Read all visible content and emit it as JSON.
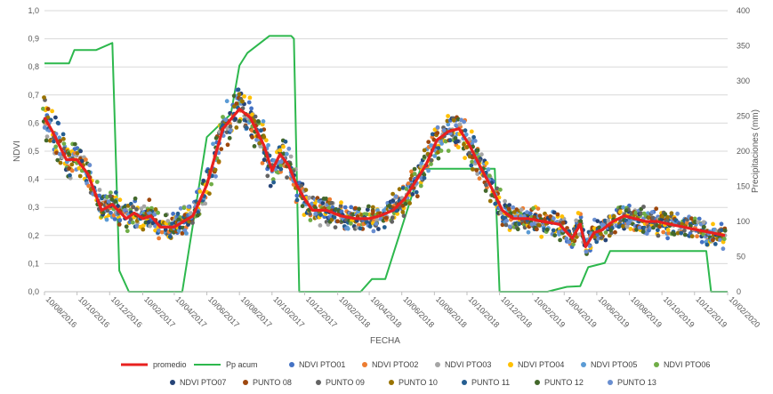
{
  "chart_data": {
    "type": "scatter",
    "xlabel": "FECHA",
    "ylabel": "NDVI",
    "y2label": "Precipitaciones (mm)",
    "ylim": [
      0,
      1
    ],
    "y2lim": [
      0,
      400
    ],
    "y_ticks": [
      "0,0",
      "0,1",
      "0,2",
      "0,3",
      "0,4",
      "0,5",
      "0,6",
      "0,7",
      "0,8",
      "0,9",
      "1,0"
    ],
    "y2_ticks": [
      "0",
      "50",
      "100",
      "150",
      "200",
      "250",
      "300",
      "350",
      "400"
    ],
    "x_ticks": [
      "10/08/2016",
      "10/10/2016",
      "10/12/2016",
      "10/02/2017",
      "10/04/2017",
      "10/06/2017",
      "10/08/2017",
      "10/10/2017",
      "10/12/2017",
      "10/02/2018",
      "10/04/2018",
      "10/06/2018",
      "10/08/2018",
      "10/10/2018",
      "10/12/2018",
      "10/02/2019",
      "10/04/2019",
      "10/06/2019",
      "10/08/2019",
      "10/10/2019",
      "10/12/2019",
      "10/02/2020"
    ],
    "grid": true,
    "legend_position": "bottom",
    "promedio": {
      "name": "promedio",
      "color": "#e8201f",
      "x": [
        "2016-08-10",
        "2016-08-25",
        "2016-09-20",
        "2016-10-10",
        "2016-10-30",
        "2016-11-25",
        "2016-12-15",
        "2017-01-10",
        "2017-01-25",
        "2017-02-10",
        "2017-02-25",
        "2017-03-15",
        "2017-04-10",
        "2017-05-15",
        "2017-06-10",
        "2017-07-10",
        "2017-08-10",
        "2017-08-30",
        "2017-09-25",
        "2017-10-10",
        "2017-10-25",
        "2017-11-10",
        "2017-11-25",
        "2017-12-10",
        "2017-12-25",
        "2018-01-20",
        "2018-02-15",
        "2018-03-15",
        "2018-04-10",
        "2018-04-30",
        "2018-05-25",
        "2018-06-15",
        "2018-07-05",
        "2018-07-25",
        "2018-08-15",
        "2018-09-05",
        "2018-09-25",
        "2018-10-15",
        "2018-11-05",
        "2018-11-25",
        "2018-12-15",
        "2019-01-05",
        "2019-02-01",
        "2019-03-01",
        "2019-04-01",
        "2019-04-25",
        "2019-05-10",
        "2019-05-20",
        "2019-06-05",
        "2019-06-20",
        "2019-07-10",
        "2019-08-01",
        "2019-08-20",
        "2019-09-10",
        "2019-10-01",
        "2019-10-25",
        "2019-11-20",
        "2019-12-15",
        "2020-01-10",
        "2020-02-05"
      ],
      "values": [
        0.62,
        0.57,
        0.47,
        0.47,
        0.42,
        0.29,
        0.31,
        0.26,
        0.28,
        0.26,
        0.27,
        0.23,
        0.23,
        0.27,
        0.38,
        0.58,
        0.65,
        0.62,
        0.52,
        0.43,
        0.49,
        0.45,
        0.38,
        0.33,
        0.29,
        0.29,
        0.27,
        0.26,
        0.26,
        0.27,
        0.29,
        0.33,
        0.39,
        0.45,
        0.54,
        0.57,
        0.58,
        0.52,
        0.44,
        0.37,
        0.29,
        0.26,
        0.26,
        0.25,
        0.24,
        0.19,
        0.24,
        0.16,
        0.21,
        0.22,
        0.25,
        0.27,
        0.26,
        0.25,
        0.25,
        0.24,
        0.23,
        0.22,
        0.21,
        0.2
      ]
    },
    "pp_acum": {
      "name": "Pp acum",
      "color": "#2db84d",
      "x": [
        "2016-08-10",
        "2016-09-25",
        "2016-10-05",
        "2016-11-15",
        "2016-12-15",
        "2016-12-28",
        "2017-01-15",
        "2017-04-25",
        "2017-06-10",
        "2017-07-25",
        "2017-08-10",
        "2017-08-25",
        "2017-10-05",
        "2017-11-15",
        "2017-11-20",
        "2017-11-30",
        "2018-03-15",
        "2018-03-25",
        "2018-04-15",
        "2018-04-25",
        "2018-05-10",
        "2018-07-15",
        "2018-10-15",
        "2018-12-01",
        "2018-12-10",
        "2019-02-10",
        "2019-03-10",
        "2019-03-20",
        "2019-04-15",
        "2019-05-10",
        "2019-05-25",
        "2019-06-25",
        "2019-07-05",
        "2019-07-20",
        "2020-01-01",
        "2020-01-10",
        "2020-02-10"
      ],
      "values": [
        325,
        325,
        344,
        344,
        354,
        30,
        0,
        0,
        220,
        253,
        322,
        340,
        364,
        364,
        360,
        0,
        0,
        0,
        18,
        18,
        18,
        175,
        175,
        175,
        0,
        0,
        0,
        2,
        7,
        8,
        35,
        41,
        58,
        58,
        58,
        0,
        0
      ]
    },
    "series": [
      {
        "name": "NDVI PTO01",
        "color": "#4472c4"
      },
      {
        "name": "NDVI PTO02",
        "color": "#ed7d31"
      },
      {
        "name": "NDVI PTO03",
        "color": "#a5a5a5"
      },
      {
        "name": "NDVI PTO04",
        "color": "#ffc000"
      },
      {
        "name": "NDVI PTO05",
        "color": "#5b9bd5"
      },
      {
        "name": "NDVI PTO06",
        "color": "#70ad47"
      },
      {
        "name": "NDVI PTO07",
        "color": "#264478"
      },
      {
        "name": "PUNTO 08",
        "color": "#9e480e"
      },
      {
        "name": "PUNTO 09",
        "color": "#636363"
      },
      {
        "name": "PUNTO 10",
        "color": "#997300"
      },
      {
        "name": "PUNTO 11",
        "color": "#255e91"
      },
      {
        "name": "PUNTO 12",
        "color": "#43682b"
      },
      {
        "name": "PUNTO 13",
        "color": "#698ed0"
      }
    ]
  }
}
